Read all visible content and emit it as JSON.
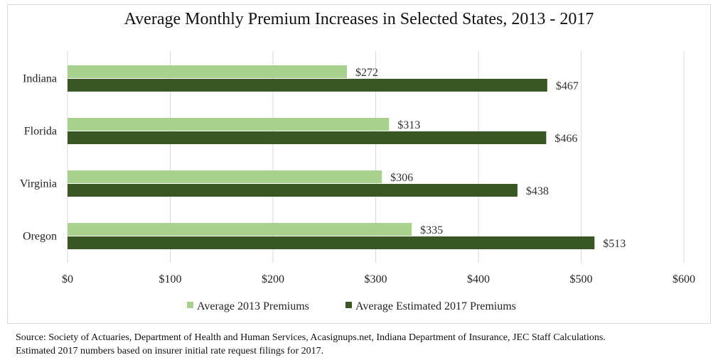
{
  "chart_data": {
    "type": "bar",
    "orientation": "horizontal",
    "title": "Average Monthly Premium Increases in Selected States, 2013 - 2017",
    "categories": [
      "Indiana",
      "Florida",
      "Virginia",
      "Oregon"
    ],
    "series": [
      {
        "name": "Average 2013 Premiums",
        "values": [
          272,
          313,
          306,
          335
        ],
        "labels": [
          "$272",
          "$313",
          "$306",
          "$335"
        ],
        "color": "#a9d18e"
      },
      {
        "name": "Average Estimated 2017 Premiums",
        "values": [
          467,
          466,
          438,
          513
        ],
        "labels": [
          "$467",
          "$466",
          "$438",
          "$513"
        ],
        "color": "#385723"
      }
    ],
    "xlim": [
      0,
      600
    ],
    "xticks": [
      0,
      100,
      200,
      300,
      400,
      500,
      600
    ],
    "xtick_labels": [
      "$0",
      "$100",
      "$200",
      "$300",
      "$400",
      "$500",
      "$600"
    ],
    "grid": true,
    "legend_position": "bottom"
  },
  "source": {
    "line1": "Source: Society of Actuaries, Department of Health and Human Services, Acasignups.net, Indiana Department of Insurance, JEC Staff Calculations.",
    "line2": "Estimated 2017 numbers based on insurer initial rate request filings for 2017."
  }
}
